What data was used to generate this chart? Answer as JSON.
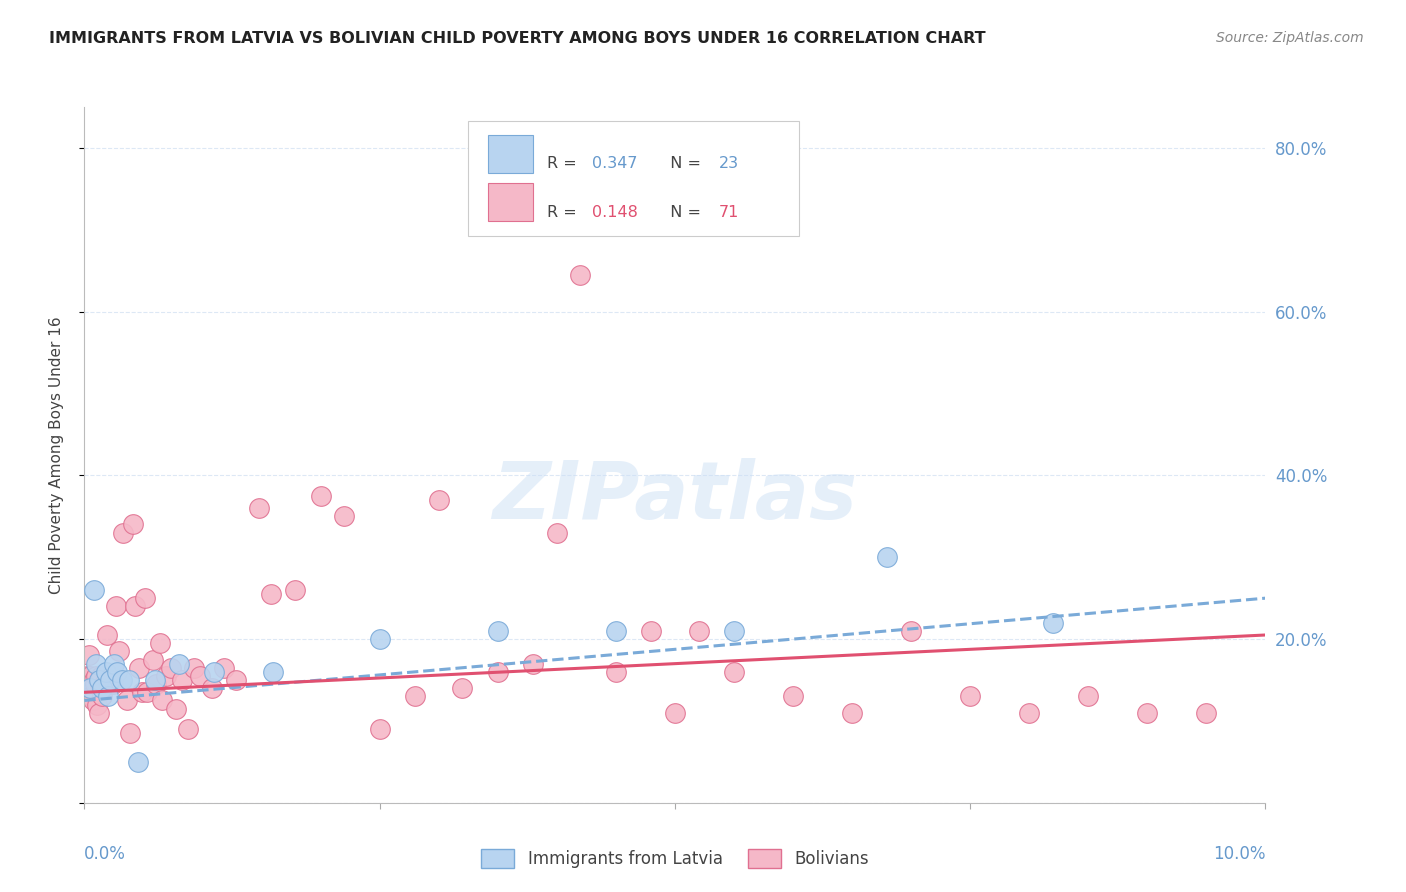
{
  "title": "IMMIGRANTS FROM LATVIA VS BOLIVIAN CHILD POVERTY AMONG BOYS UNDER 16 CORRELATION CHART",
  "source": "Source: ZipAtlas.com",
  "ylabel": "Child Poverty Among Boys Under 16",
  "watermark": "ZIPatlas",
  "legend_bottom": [
    "Immigrants from Latvia",
    "Bolivians"
  ],
  "xmin": 0.0,
  "xmax": 10.0,
  "ymin": 0.0,
  "ymax": 85.0,
  "yticks": [
    0,
    20,
    40,
    60,
    80
  ],
  "ytick_labels": [
    "",
    "20.0%",
    "40.0%",
    "60.0%",
    "80.0%"
  ],
  "blue_color": "#b8d4f0",
  "blue_edge_color": "#7aaad8",
  "pink_color": "#f5b8c8",
  "pink_edge_color": "#e07090",
  "trend_blue_color": "#7aaad8",
  "trend_pink_color": "#e05070",
  "grid_color": "#dde8f5",
  "right_axis_color": "#6699cc",
  "title_color": "#222222",
  "source_color": "#888888",
  "latvia_points": [
    [
      0.05,
      14.0
    ],
    [
      0.08,
      26.0
    ],
    [
      0.1,
      17.0
    ],
    [
      0.12,
      15.0
    ],
    [
      0.15,
      14.0
    ],
    [
      0.18,
      16.0
    ],
    [
      0.2,
      13.0
    ],
    [
      0.22,
      15.0
    ],
    [
      0.25,
      17.0
    ],
    [
      0.28,
      16.0
    ],
    [
      0.32,
      15.0
    ],
    [
      0.38,
      15.0
    ],
    [
      0.45,
      5.0
    ],
    [
      0.6,
      15.0
    ],
    [
      0.8,
      17.0
    ],
    [
      1.1,
      16.0
    ],
    [
      1.6,
      16.0
    ],
    [
      2.5,
      20.0
    ],
    [
      3.5,
      21.0
    ],
    [
      4.5,
      21.0
    ],
    [
      5.5,
      21.0
    ],
    [
      6.8,
      30.0
    ],
    [
      8.2,
      22.0
    ]
  ],
  "bolivian_points": [
    [
      0.02,
      15.5
    ],
    [
      0.03,
      14.0
    ],
    [
      0.04,
      18.0
    ],
    [
      0.05,
      15.5
    ],
    [
      0.06,
      13.0
    ],
    [
      0.07,
      12.5
    ],
    [
      0.08,
      15.0
    ],
    [
      0.09,
      14.5
    ],
    [
      0.1,
      15.5
    ],
    [
      0.11,
      12.0
    ],
    [
      0.12,
      11.0
    ],
    [
      0.13,
      14.5
    ],
    [
      0.14,
      15.5
    ],
    [
      0.15,
      13.0
    ],
    [
      0.17,
      14.5
    ],
    [
      0.19,
      20.5
    ],
    [
      0.21,
      14.5
    ],
    [
      0.24,
      14.5
    ],
    [
      0.27,
      24.0
    ],
    [
      0.29,
      18.5
    ],
    [
      0.33,
      33.0
    ],
    [
      0.36,
      12.5
    ],
    [
      0.39,
      8.5
    ],
    [
      0.41,
      34.0
    ],
    [
      0.43,
      24.0
    ],
    [
      0.46,
      16.5
    ],
    [
      0.49,
      13.5
    ],
    [
      0.51,
      25.0
    ],
    [
      0.53,
      13.5
    ],
    [
      0.58,
      17.5
    ],
    [
      0.61,
      14.5
    ],
    [
      0.64,
      19.5
    ],
    [
      0.66,
      12.5
    ],
    [
      0.69,
      15.5
    ],
    [
      0.73,
      16.5
    ],
    [
      0.78,
      11.5
    ],
    [
      0.83,
      15.0
    ],
    [
      0.88,
      9.0
    ],
    [
      0.93,
      16.5
    ],
    [
      0.98,
      15.5
    ],
    [
      1.08,
      14.0
    ],
    [
      1.18,
      16.5
    ],
    [
      1.28,
      15.0
    ],
    [
      1.48,
      36.0
    ],
    [
      1.58,
      25.5
    ],
    [
      1.78,
      26.0
    ],
    [
      2.0,
      37.5
    ],
    [
      2.2,
      35.0
    ],
    [
      2.5,
      9.0
    ],
    [
      2.8,
      13.0
    ],
    [
      3.0,
      37.0
    ],
    [
      3.2,
      14.0
    ],
    [
      3.5,
      16.0
    ],
    [
      3.8,
      17.0
    ],
    [
      4.0,
      33.0
    ],
    [
      4.2,
      64.5
    ],
    [
      4.5,
      16.0
    ],
    [
      4.8,
      21.0
    ],
    [
      5.0,
      11.0
    ],
    [
      5.2,
      21.0
    ],
    [
      5.5,
      16.0
    ],
    [
      6.0,
      13.0
    ],
    [
      6.5,
      11.0
    ],
    [
      7.0,
      21.0
    ],
    [
      7.5,
      13.0
    ],
    [
      8.0,
      11.0
    ],
    [
      8.5,
      13.0
    ],
    [
      9.0,
      11.0
    ],
    [
      9.5,
      11.0
    ]
  ],
  "latvia_trend": [
    12.5,
    25.0
  ],
  "bolivian_trend": [
    13.5,
    20.5
  ]
}
